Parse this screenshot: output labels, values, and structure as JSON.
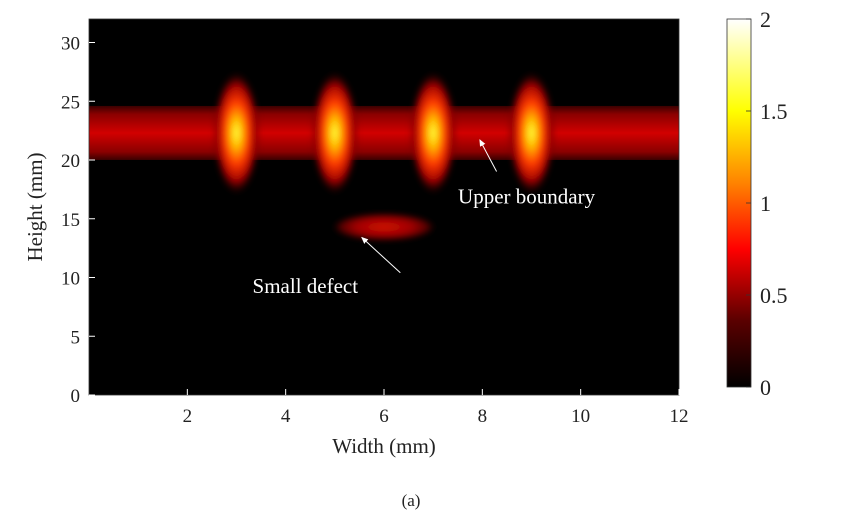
{
  "chart_data": {
    "type": "heatmap",
    "xlabel": "Width (mm)",
    "ylabel": "Height (mm)",
    "xlim": [
      0,
      12
    ],
    "ylim": [
      0,
      32
    ],
    "xticks": [
      2,
      4,
      6,
      8,
      10,
      12
    ],
    "yticks": [
      0,
      5,
      10,
      15,
      20,
      25,
      30
    ],
    "colormap": "hot",
    "clim": [
      0,
      2
    ],
    "colorbar": {
      "ticks": [
        0,
        0.5,
        1,
        1.5,
        2
      ]
    },
    "band": {
      "y_center": 22.3,
      "y_half_height": 2.3,
      "intensity": 0.85
    },
    "hotspots": [
      {
        "x": 3,
        "y": 22.3,
        "peak": 1.5
      },
      {
        "x": 5,
        "y": 22.3,
        "peak": 1.6
      },
      {
        "x": 7,
        "y": 22.3,
        "peak": 1.35
      },
      {
        "x": 9,
        "y": 22.3,
        "peak": 1.35
      },
      {
        "x": 6,
        "y": 14.3,
        "peak": 0.8
      }
    ],
    "annotations": [
      {
        "text": "Upper boundary",
        "text_x": 8.9,
        "text_y": 16.3,
        "arrow_to_x": 7.95,
        "arrow_to_y": 21.7
      },
      {
        "text": "Small defect",
        "text_x": 4.4,
        "text_y": 8.7,
        "arrow_to_x": 5.55,
        "arrow_to_y": 13.4
      }
    ],
    "caption": "(a)"
  }
}
